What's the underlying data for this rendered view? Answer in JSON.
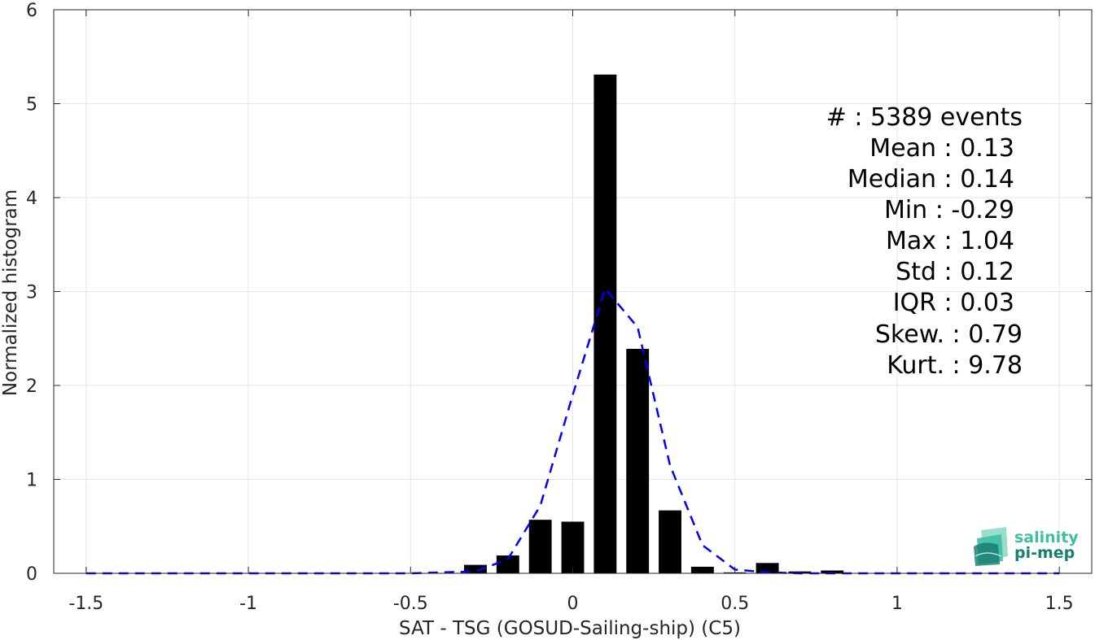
{
  "chart_data": {
    "type": "bar",
    "xlabel": "SAT - TSG (GOSUD-Sailing-ship) (C5)",
    "ylabel": "Normalized histogram",
    "xlim": [
      -1.6,
      1.6
    ],
    "ylim": [
      0,
      6
    ],
    "grid": true,
    "x_ticks": [
      -1.5,
      -1,
      -0.5,
      0,
      0.5,
      1,
      1.5
    ],
    "x_tick_labels": [
      "-1.5",
      "-1",
      "-0.5",
      "0",
      "0.5",
      "1",
      "1.5"
    ],
    "y_ticks": [
      0,
      1,
      2,
      3,
      4,
      5,
      6
    ],
    "y_tick_labels": [
      "0",
      "1",
      "2",
      "3",
      "4",
      "5",
      "6"
    ],
    "bar_width": 0.07,
    "bars": {
      "x": [
        -0.3,
        -0.2,
        -0.1,
        0.0,
        0.1,
        0.2,
        0.3,
        0.4,
        0.5,
        0.6,
        0.7,
        0.8
      ],
      "values": [
        0.09,
        0.19,
        0.57,
        0.55,
        5.31,
        2.39,
        0.67,
        0.07,
        0.01,
        0.11,
        0.02,
        0.03
      ],
      "color": "#000000"
    },
    "fit_curve": {
      "style": "dashed",
      "color": "#0000ff",
      "x": [
        -1.5,
        -1.4,
        -1.3,
        -1.2,
        -1.1,
        -1.0,
        -0.9,
        -0.8,
        -0.7,
        -0.6,
        -0.5,
        -0.4,
        -0.3,
        -0.2,
        -0.1,
        0.0,
        0.1,
        0.2,
        0.3,
        0.4,
        0.5,
        0.6,
        0.7,
        0.8,
        0.9,
        1.0,
        1.1,
        1.2,
        1.3,
        1.4,
        1.5
      ],
      "y": [
        0,
        0,
        0,
        0,
        0,
        0,
        0,
        0,
        0,
        0,
        0,
        0.01,
        0.02,
        0.15,
        0.72,
        1.9,
        3.03,
        2.62,
        1.15,
        0.3,
        0.04,
        0.01,
        0,
        0,
        0,
        0,
        0,
        0,
        0,
        0,
        0
      ]
    },
    "stats": [
      {
        "label": "#  : 5389 events"
      },
      {
        "label": "Mean : 0.13"
      },
      {
        "label": "Median : 0.14"
      },
      {
        "label": "Min : -0.29"
      },
      {
        "label": "Max : 1.04"
      },
      {
        "label": "Std : 0.12"
      },
      {
        "label": "IQR : 0.03"
      },
      {
        "label": "Skew. : 0.79"
      },
      {
        "label": "Kurt. : 9.78"
      }
    ]
  },
  "logo": {
    "line1": "salinity",
    "line2": "pi-mep",
    "color_light": "#3dbfa3",
    "color_dark": "#1a7f73"
  },
  "colors": {
    "grid": "#e6e6e6",
    "axis": "#262626"
  }
}
